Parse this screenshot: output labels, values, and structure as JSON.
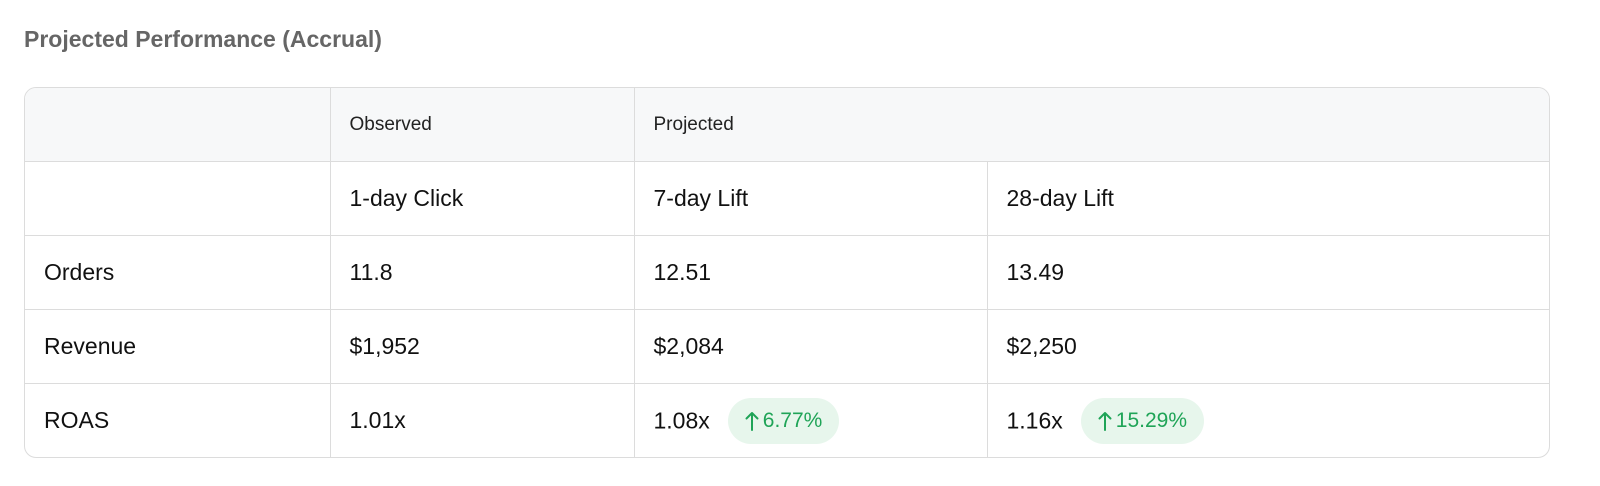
{
  "title": "Projected Performance (Accrual)",
  "table": {
    "header_groups": [
      "Observed",
      "Projected"
    ],
    "columns": [
      "1-day Click",
      "7-day Lift",
      "28-day Lift"
    ],
    "rows": [
      {
        "label": "Orders",
        "cells": [
          {
            "value": "11.8"
          },
          {
            "value": "12.51"
          },
          {
            "value": "13.49"
          }
        ]
      },
      {
        "label": "Revenue",
        "cells": [
          {
            "value": "$1,952"
          },
          {
            "value": "$2,084"
          },
          {
            "value": "$2,250"
          }
        ]
      },
      {
        "label": "ROAS",
        "cells": [
          {
            "value": "1.01x"
          },
          {
            "value": "1.08x",
            "change": "6.77%"
          },
          {
            "value": "1.16x",
            "change": "15.29%"
          }
        ]
      }
    ]
  }
}
